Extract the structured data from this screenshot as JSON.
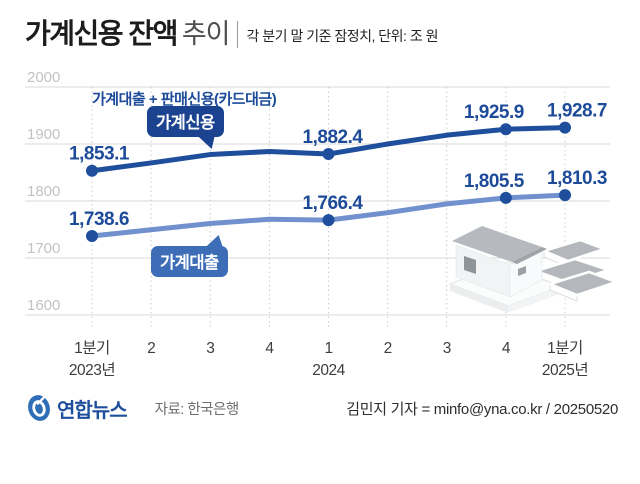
{
  "header": {
    "title": "가계신용 잔액",
    "title_suffix": "추이",
    "subtitle": "각 분기 말 기준 잠정치, 단위: 조 원"
  },
  "colors": {
    "line1": "#1e4e9c",
    "line2": "#7091ce",
    "label": "#1d4b99",
    "badge1": "#1b4390",
    "badge2": "#3e6db8",
    "grid": "#d8d8d8",
    "gridv": "#cccccc",
    "ytick": "#c2c2c2",
    "xtick": "#3d3d3d",
    "title": "#1c1c1c",
    "suffix": "#4f4f4f",
    "subtitle": "#242424",
    "source": "#6f6f6f",
    "byline": "#2e2e2e",
    "logo": "#1e4f9e",
    "emblem": "#2f6db6"
  },
  "chart_data": {
    "type": "line",
    "title": "가계신용 잔액 추이",
    "unit_note": "각 분기 말 기준 잠정치, 단위: 조 원",
    "annotation": "가계대출 + 판매신용(카드대금)",
    "ylim": [
      1600,
      2000
    ],
    "yticks": [
      2000,
      1900,
      1800,
      1700,
      1600
    ],
    "x_categories": [
      {
        "label": "1분기",
        "sub": "2023년"
      },
      {
        "label": "2"
      },
      {
        "label": "3"
      },
      {
        "label": "4"
      },
      {
        "label": "1",
        "sub": "2024"
      },
      {
        "label": "2"
      },
      {
        "label": "3"
      },
      {
        "label": "4"
      },
      {
        "label": "1분기",
        "sub": "2025년"
      }
    ],
    "dot_color": "#1e4e9c",
    "series": [
      {
        "id": "household-credit",
        "name": "가계신용",
        "badge": "가계신용",
        "color": "#1e4e9c",
        "values": [
          1853.1,
          1866.8,
          1881.5,
          1886.8,
          1882.4,
          1900.0,
          1915.5,
          1925.9,
          1928.7
        ],
        "labeled_points": [
          {
            "index": 0,
            "label": "1,853.1",
            "dx": 7
          },
          {
            "index": 4,
            "label": "1,882.4",
            "dx": 4
          },
          {
            "index": 7,
            "label": "1,925.9",
            "dx": -12
          },
          {
            "index": 8,
            "label": "1,928.7",
            "dx": 12
          }
        ]
      },
      {
        "id": "household-loans",
        "name": "가계대출",
        "badge": "가계대출",
        "color": "#7091ce",
        "values": [
          1738.6,
          1749.5,
          1760.5,
          1768.0,
          1766.4,
          1779.5,
          1795.0,
          1805.5,
          1810.3
        ],
        "labeled_points": [
          {
            "index": 0,
            "label": "1,738.6",
            "dx": 7
          },
          {
            "index": 4,
            "label": "1,766.4",
            "dx": 4
          },
          {
            "index": 7,
            "label": "1,805.5",
            "dx": -12
          },
          {
            "index": 8,
            "label": "1,810.3",
            "dx": 12
          }
        ]
      }
    ]
  },
  "footer": {
    "logo_text": "연합뉴스",
    "source": "자료: 한국은행",
    "byline": "김민지 기자 = minfo@yna.co.kr / 20250520"
  }
}
